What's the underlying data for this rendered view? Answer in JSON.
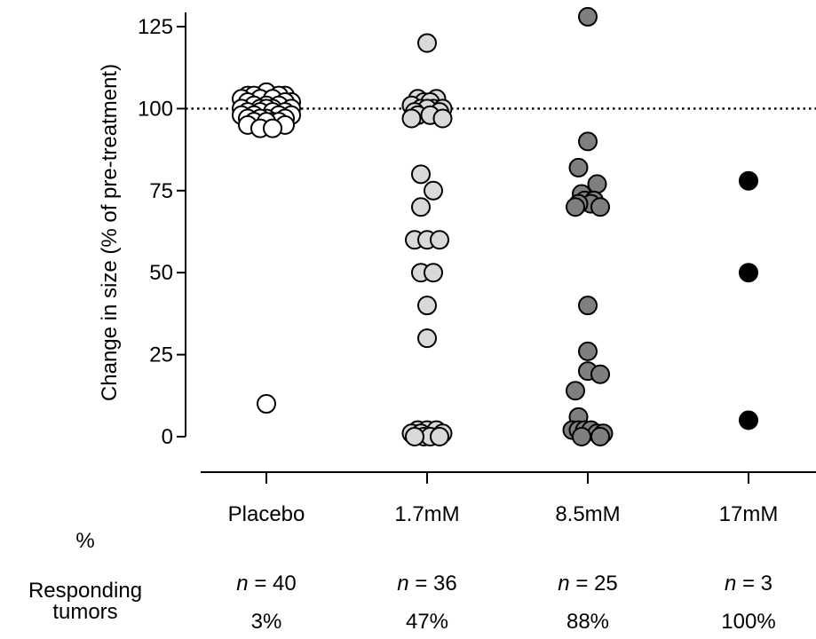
{
  "chart_data": {
    "type": "scatter",
    "ylabel": "Change in size (% of pre-treatment)",
    "ylim": [
      0,
      125
    ],
    "yticks": [
      0,
      25,
      50,
      75,
      100,
      125
    ],
    "reference_line": 100,
    "categories": [
      "Placebo",
      "1.7mM",
      "8.5mM",
      "17mM"
    ],
    "series": [
      {
        "category": "Placebo",
        "color": "#ffffff",
        "values": [
          105,
          104,
          104,
          104,
          104,
          103,
          103,
          103,
          102,
          102,
          102,
          101,
          101,
          101,
          100,
          100,
          100,
          100,
          100,
          99,
          99,
          99,
          99,
          98,
          98,
          98,
          98,
          97,
          97,
          97,
          97,
          96,
          96,
          96,
          96,
          95,
          95,
          94,
          94,
          10
        ],
        "dx": [
          0,
          -3,
          3,
          -2,
          2,
          -1,
          1,
          -4,
          4,
          -3,
          3,
          0,
          -2,
          2,
          -1,
          1,
          -4,
          4,
          0,
          -3,
          3,
          -1,
          1,
          -2,
          2,
          -4,
          4,
          0,
          -3,
          3,
          -1,
          1,
          -2,
          2,
          0,
          -3,
          3,
          -1,
          1,
          0
        ]
      },
      {
        "category": "1.7mM",
        "color": "#d9d9d9",
        "values": [
          120,
          103,
          103,
          102,
          102,
          101,
          100,
          100,
          100,
          100,
          99,
          99,
          98,
          98,
          97,
          97,
          80,
          75,
          70,
          60,
          60,
          60,
          50,
          50,
          40,
          30,
          2,
          2,
          2,
          1,
          1,
          1,
          0,
          0,
          0,
          0
        ],
        "dx": [
          0,
          -1.5,
          1.5,
          -0.5,
          0.5,
          -2.5,
          -1,
          1,
          2.5,
          0,
          -2,
          2,
          -1.5,
          0.5,
          -2.5,
          2.5,
          -1,
          1,
          -1,
          -2,
          0,
          2,
          -1,
          1,
          0,
          0,
          -1.5,
          0,
          1.5,
          -2.5,
          -1,
          2.5,
          -0.5,
          0.5,
          -2,
          2
        ]
      },
      {
        "category": "8.5mM",
        "color": "#7f7f7f",
        "values": [
          128,
          90,
          82,
          77,
          74,
          72,
          72,
          71,
          71,
          70,
          70,
          40,
          26,
          20,
          19,
          14,
          6,
          2,
          2,
          2,
          2,
          1,
          1,
          0,
          0
        ],
        "dx": [
          0,
          0,
          -1.5,
          1.5,
          -1,
          -0.5,
          1,
          0.5,
          -1.5,
          -2,
          2,
          0,
          0,
          0,
          2,
          -2,
          -1.5,
          -2.5,
          -1.5,
          -0.5,
          0.5,
          1.5,
          2.5,
          -1,
          2
        ]
      },
      {
        "category": "17mM",
        "color": "#000000",
        "values": [
          78,
          50,
          5
        ],
        "dx": [
          0,
          0,
          0
        ]
      }
    ],
    "footer": {
      "percent_header": "%",
      "responding_label_line1": "Responding",
      "responding_label_line2": "tumors",
      "n_prefix": "n",
      "n_values": [
        "= 40",
        "= 36",
        "= 25",
        "= 3"
      ],
      "percents": [
        "3%",
        "47%",
        "88%",
        "100%"
      ]
    }
  }
}
